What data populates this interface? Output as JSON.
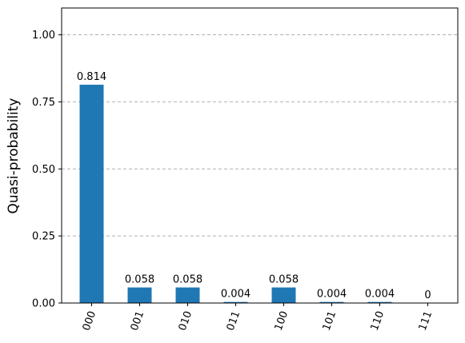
{
  "chart_data": {
    "type": "bar",
    "y_label": "Quasi-probability",
    "categories": [
      "000",
      "001",
      "010",
      "011",
      "100",
      "101",
      "110",
      "111"
    ],
    "values": [
      0.814,
      0.058,
      0.058,
      0.004,
      0.058,
      0.004,
      0.004,
      0
    ],
    "color": "#1f77b4",
    "ylim": [
      0,
      1.1
    ],
    "yticks": [
      {
        "value": 0,
        "label": "0.00"
      },
      {
        "value": 0.25,
        "label": "0.25"
      },
      {
        "value": 0.5,
        "label": "0.50"
      },
      {
        "value": 0.75,
        "label": "0.75"
      },
      {
        "value": 1.0,
        "label": "1.00"
      }
    ],
    "grid": true
  }
}
